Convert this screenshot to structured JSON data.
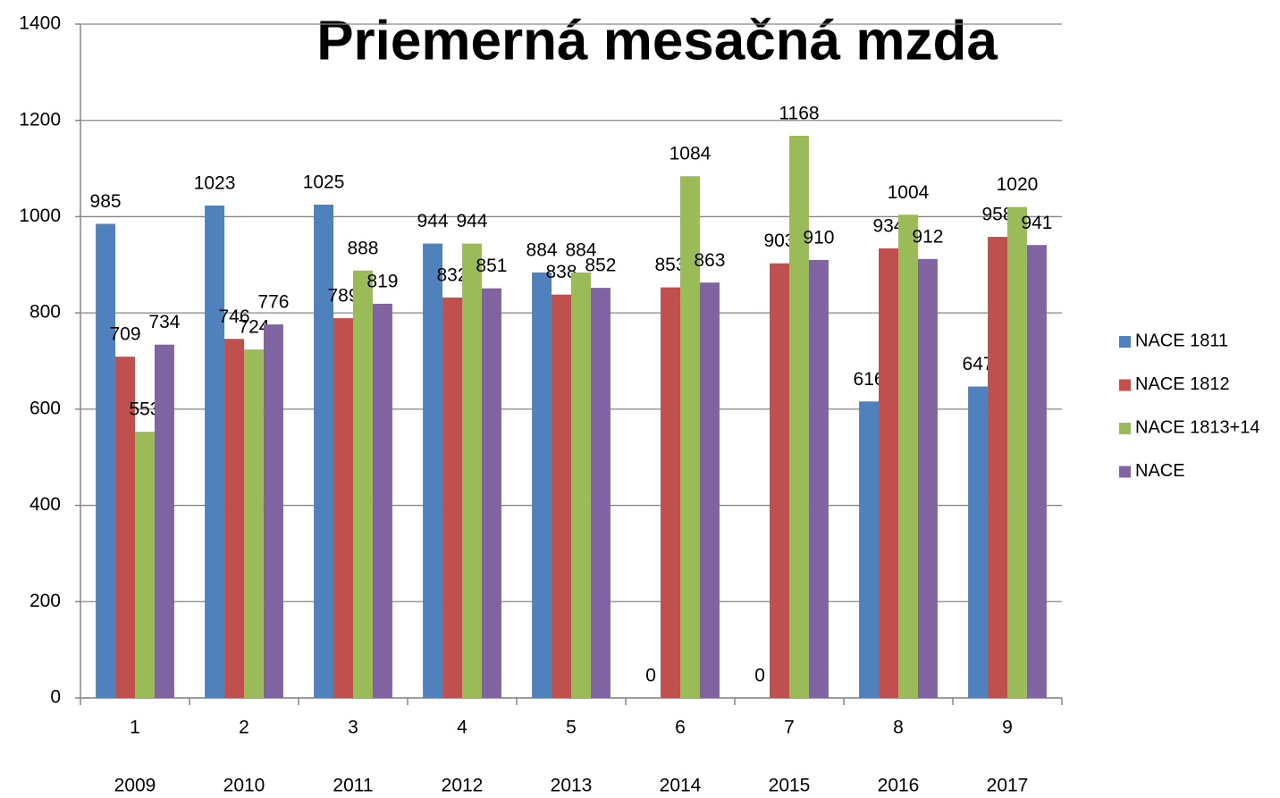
{
  "chart_data": {
    "type": "bar",
    "title": "Priemerná mesačná mzda",
    "categories": [
      "1",
      "2",
      "3",
      "4",
      "5",
      "6",
      "7",
      "8",
      "9"
    ],
    "years": [
      "2009",
      "2010",
      "2011",
      "2012",
      "2013",
      "2014",
      "2015",
      "2016",
      "2017"
    ],
    "series": [
      {
        "name": "NACE 1811",
        "color": "#4f81bd",
        "values": [
          985,
          1023,
          1025,
          944,
          884,
          0,
          0,
          616,
          647
        ]
      },
      {
        "name": "NACE 1812",
        "color": "#c0504d",
        "values": [
          709,
          746,
          789,
          832,
          838,
          853,
          903,
          934,
          958
        ]
      },
      {
        "name": "NACE 1813+14",
        "color": "#9bbb59",
        "values": [
          553,
          724,
          888,
          944,
          884,
          1084,
          1168,
          1004,
          1020
        ]
      },
      {
        "name": "NACE",
        "color": "#8064a2",
        "values": [
          734,
          776,
          819,
          851,
          852,
          863,
          910,
          912,
          941
        ]
      }
    ],
    "ylim": [
      0,
      1400
    ],
    "yticks": [
      0,
      200,
      400,
      600,
      800,
      1000,
      1200,
      1400
    ],
    "grid": true,
    "legend": "right"
  }
}
